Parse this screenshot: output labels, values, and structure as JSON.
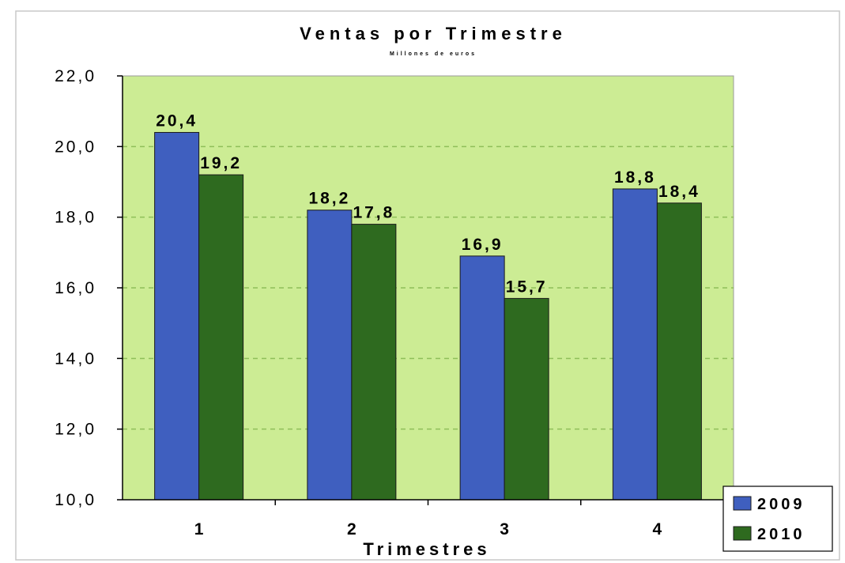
{
  "chart_data": {
    "type": "bar",
    "title": "Ventas por Trimestre",
    "subtitle": "Millones de euros",
    "xlabel": "Trimestres",
    "ylabel": "",
    "categories": [
      "1",
      "2",
      "3",
      "4"
    ],
    "series": [
      {
        "name": "2009",
        "values": [
          20.4,
          18.2,
          16.9,
          18.8
        ],
        "labels": [
          "20,4",
          "18,2",
          "16,9",
          "18,8"
        ],
        "color": "#3f5fbf"
      },
      {
        "name": "2010",
        "values": [
          19.2,
          17.8,
          15.7,
          18.4
        ],
        "labels": [
          "19,2",
          "17,8",
          "15,7",
          "18,4"
        ],
        "color": "#2e6a1f"
      }
    ],
    "ylim": [
      10,
      22
    ],
    "yticks": [
      10,
      12,
      14,
      16,
      18,
      20,
      22
    ],
    "ytick_labels": [
      "10,0",
      "12,0",
      "14,0",
      "16,0",
      "18,0",
      "20,0",
      "22,0"
    ],
    "grid": true,
    "legend_position": "bottom-right",
    "plot_background": "#ccec94"
  }
}
